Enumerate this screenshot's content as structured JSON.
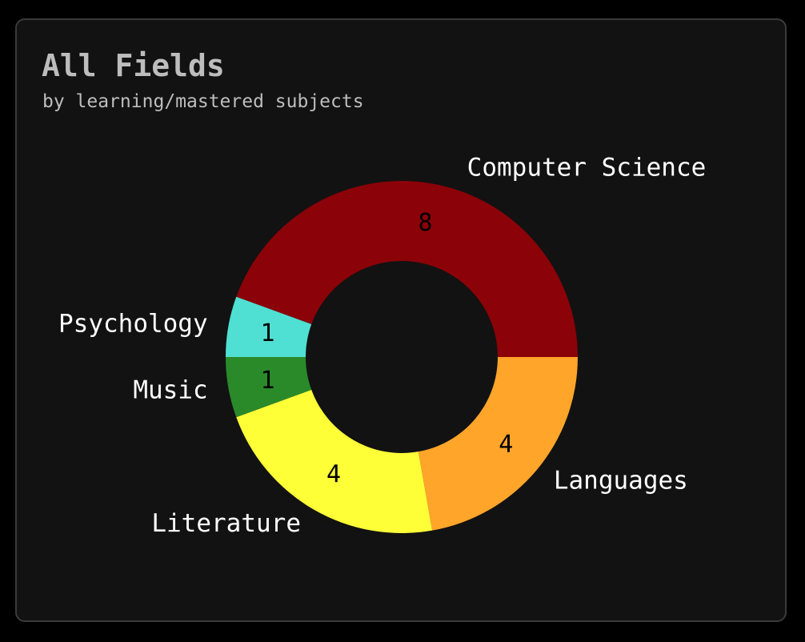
{
  "chart_data": {
    "type": "pie",
    "title": "All Fields",
    "subtitle": "by learning/mastered subjects",
    "donut": true,
    "legend": "none",
    "slices": [
      {
        "label": "Computer Science",
        "value": 8,
        "color": "#8b0208"
      },
      {
        "label": "Psychology",
        "value": 1,
        "color": "#4fe0d3"
      },
      {
        "label": "Music",
        "value": 1,
        "color": "#2a8a2a"
      },
      {
        "label": "Literature",
        "value": 4,
        "color": "#ffff38"
      },
      {
        "label": "Languages",
        "value": 4,
        "color": "#ffa52a"
      }
    ]
  }
}
